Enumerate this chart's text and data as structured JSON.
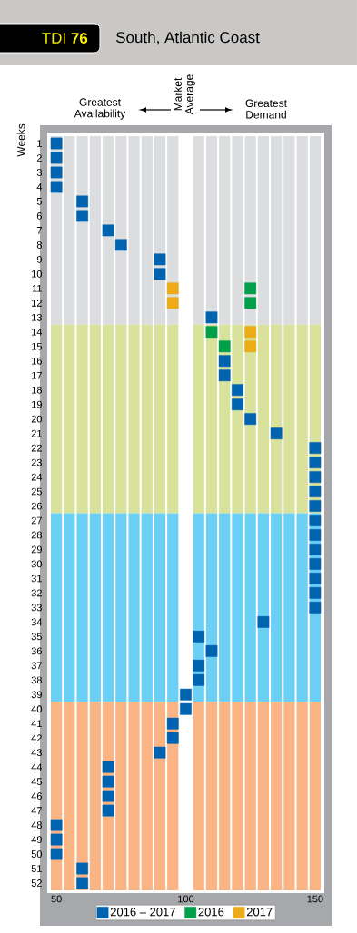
{
  "chart_data": {
    "type": "scatter",
    "title": "TDI **76**",
    "subtitle": "South, Atlantic Coast",
    "ylabel": "Weeks",
    "annotations": [
      "Greatest Availability",
      "Market Average",
      "Greatest Demand"
    ],
    "xlim": [
      47.5,
      152.5
    ],
    "xticks": [
      50,
      100,
      150,
      {
        "value": 47.5,
        "label": null
      },
      {
        "value": 52.5,
        "label": null
      },
      {
        "value": 57.5,
        "label": null
      },
      {
        "value": 62.5,
        "label": null
      },
      {
        "value": 67.5,
        "label": null
      },
      {
        "value": 72.5,
        "label": null
      },
      {
        "value": 77.5,
        "label": null
      },
      {
        "value": 82.5,
        "label": null
      },
      {
        "value": 87.5,
        "label": null
      },
      {
        "value": 92.5,
        "label": null
      },
      {
        "value": 97.5,
        "label": null
      },
      {
        "value": 102.5,
        "label": null
      },
      {
        "value": 107.5,
        "label": null
      },
      {
        "value": 112.5,
        "label": null
      },
      {
        "value": 117.5,
        "label": null
      },
      {
        "value": 122.5,
        "label": null
      },
      {
        "value": 127.5,
        "label": null
      },
      {
        "value": 132.5,
        "label": null
      },
      {
        "value": 137.5,
        "label": null
      },
      {
        "value": 142.5,
        "label": null
      },
      {
        "value": 147.5,
        "label": null
      },
      {
        "value": 152.5,
        "label": null
      }
    ],
    "ylim": [
      52.5,
      0.5
    ],
    "yticks": [
      1,
      2,
      3,
      4,
      5,
      6,
      7,
      8,
      9,
      10,
      11,
      12,
      13,
      14,
      15,
      16,
      17,
      18,
      19,
      20,
      21,
      22,
      23,
      24,
      25,
      26,
      27,
      28,
      29,
      30,
      31,
      32,
      33,
      34,
      35,
      36,
      37,
      38,
      39,
      40,
      41,
      42,
      43,
      44,
      45,
      46,
      47,
      48,
      49,
      50,
      51,
      52
    ],
    "bands": [
      {
        "axis": "y",
        "from": 0.5,
        "to": 13.5,
        "color": "#dcdddf"
      },
      {
        "axis": "y",
        "from": 13.5,
        "to": 26.5,
        "color": "#d9e29b"
      },
      {
        "axis": "y",
        "from": 26.5,
        "to": 39.5,
        "color": "#6ccff6"
      },
      {
        "axis": "y",
        "from": 39.5,
        "to": 52.5,
        "color": "#fbb584"
      },
      {
        "axis": "x",
        "from": 97.5,
        "to": 102.5,
        "color": "#ffffff"
      }
    ],
    "grid": "x",
    "marker": "square",
    "legend": "bottom",
    "series": [
      {
        "name": "2016 – 2017",
        "color": "#0063b0",
        "x": [
          50,
          50,
          50,
          50,
          60,
          60,
          70,
          75,
          90,
          90,
          null,
          null,
          110,
          null,
          null,
          115,
          115,
          120,
          120,
          125,
          135,
          150,
          150,
          150,
          150,
          150,
          150,
          150,
          150,
          150,
          150,
          150,
          150,
          130,
          105,
          110,
          105,
          105,
          100,
          100,
          95,
          95,
          90,
          70,
          70,
          70,
          70,
          50,
          50,
          50,
          60,
          60
        ],
        "values": [
          1,
          2,
          3,
          4,
          5,
          6,
          7,
          8,
          9,
          10,
          null,
          null,
          13,
          null,
          null,
          16,
          17,
          18,
          19,
          20,
          21,
          22,
          23,
          24,
          25,
          26,
          27,
          28,
          29,
          30,
          31,
          32,
          33,
          34,
          35,
          36,
          37,
          38,
          39,
          40,
          41,
          42,
          43,
          44,
          45,
          46,
          47,
          48,
          49,
          50,
          51,
          52
        ]
      },
      {
        "name": "2016",
        "color": "#00a04b",
        "x": [
          125,
          125,
          110,
          115
        ],
        "values": [
          11,
          12,
          14,
          15
        ]
      },
      {
        "name": "2017",
        "color": "#ecab17",
        "x": [
          95,
          95,
          125,
          125
        ],
        "values": [
          11,
          12,
          14,
          15
        ]
      }
    ]
  }
}
